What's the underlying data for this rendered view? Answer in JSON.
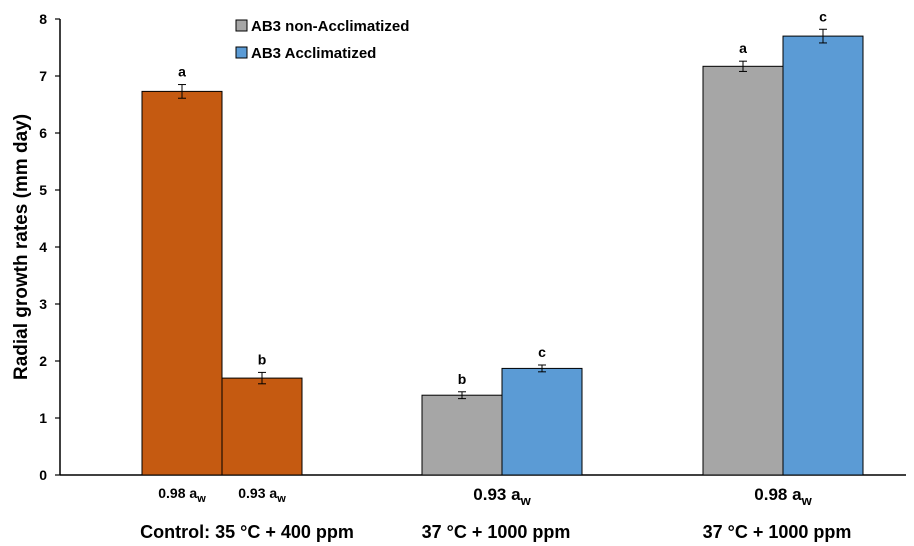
{
  "chart_data": {
    "type": "bar",
    "ylabel": "Radial growth rates (mm day)",
    "ylim": [
      0,
      8
    ],
    "yticks": [
      "0",
      "1",
      "2",
      "3",
      "4",
      "5",
      "6",
      "7",
      "8"
    ],
    "legend": {
      "placement": "top-center",
      "entries": [
        {
          "name": "AB3 non-Acclimatized",
          "color": "#a6a6a6"
        },
        {
          "name": "AB3 Acclimatized",
          "color": "#5b9bd5"
        }
      ]
    },
    "control_color": "#c55a11",
    "groups": [
      {
        "label": "Control: 35 °C + 400 ppm",
        "sub_label_size": "small",
        "bars": [
          {
            "sub_label": "0.98 a",
            "sub_label_sub": "w",
            "value": 6.73,
            "error": 0.12,
            "sig": "a",
            "fill": "control"
          },
          {
            "sub_label": "0.93 a",
            "sub_label_sub": "w",
            "value": 1.7,
            "error": 0.1,
            "sig": "b",
            "fill": "control"
          }
        ]
      },
      {
        "label": "37 °C + 1000 ppm",
        "sub_label": "0.93 a",
        "sub_label_sub": "w",
        "bars": [
          {
            "series": "AB3 non-Acclimatized",
            "value": 1.4,
            "error": 0.06,
            "sig": "b"
          },
          {
            "series": "AB3 Acclimatized",
            "value": 1.87,
            "error": 0.06,
            "sig": "c"
          }
        ]
      },
      {
        "label": "37 °C + 1000 ppm",
        "sub_label": "0.98 a",
        "sub_label_sub": "w",
        "bars": [
          {
            "series": "AB3 non-Acclimatized",
            "value": 7.17,
            "error": 0.09,
            "sig": "a"
          },
          {
            "series": "AB3 Acclimatized",
            "value": 7.7,
            "error": 0.12,
            "sig": "c"
          }
        ]
      }
    ]
  }
}
